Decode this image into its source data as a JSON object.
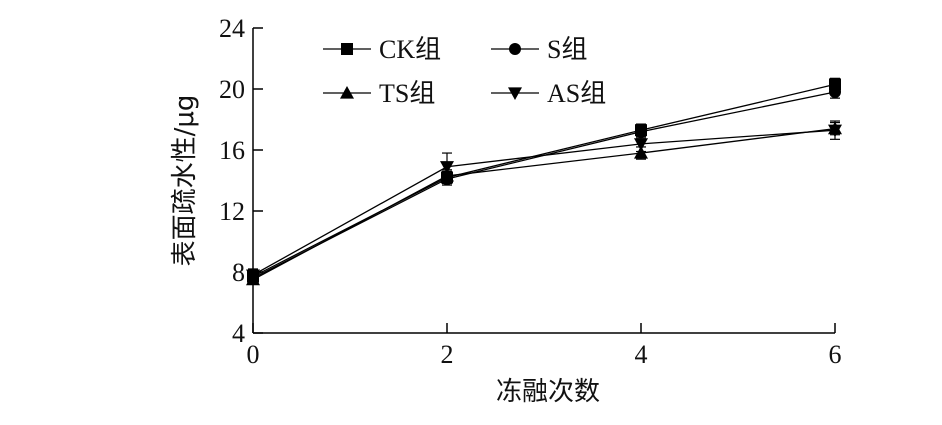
{
  "chart_data": {
    "type": "line",
    "xlabel": "冻融次数",
    "ylabel": "表面疏水性/μg",
    "x": [
      0,
      2,
      4,
      6
    ],
    "xlim": [
      0,
      6
    ],
    "ylim": [
      4,
      24
    ],
    "xticks": [
      0,
      2,
      4,
      6
    ],
    "yticks": [
      4,
      8,
      12,
      16,
      20,
      24
    ],
    "grid": false,
    "legend_position": "top-left",
    "series": [
      {
        "name": "CK组",
        "marker": "square",
        "values": [
          7.7,
          14.2,
          17.3,
          20.3
        ],
        "errors": [
          0.3,
          0.4,
          0.4,
          0.4
        ]
      },
      {
        "name": "S组",
        "marker": "circle",
        "values": [
          7.6,
          14.1,
          17.2,
          19.8
        ],
        "errors": [
          0.3,
          0.4,
          0.4,
          0.4
        ]
      },
      {
        "name": "TS组",
        "marker": "triangle-up",
        "values": [
          7.5,
          14.3,
          15.8,
          17.4
        ],
        "errors": [
          0.3,
          0.4,
          0.4,
          0.4
        ]
      },
      {
        "name": "AS组",
        "marker": "triangle-down",
        "values": [
          7.8,
          14.9,
          16.4,
          17.3
        ],
        "errors": [
          0.4,
          0.9,
          0.5,
          0.6
        ]
      }
    ],
    "color": "#000000"
  }
}
